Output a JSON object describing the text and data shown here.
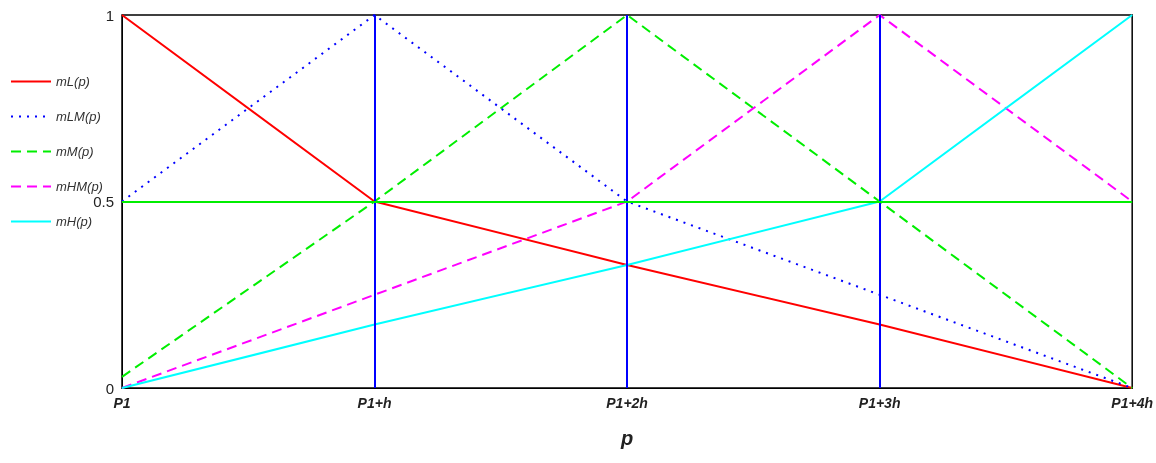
{
  "chart_data": {
    "type": "line",
    "xlabel": "p",
    "categories": [
      "P1",
      "P1+h",
      "P1+2h",
      "P1+3h",
      "P1+4h"
    ],
    "ylim": [
      0,
      1
    ],
    "yticks": [
      0,
      0.5,
      1
    ],
    "grid": false,
    "legend": "left",
    "marker": "none",
    "series": [
      {
        "name": "mL(p)",
        "color": "#ff0000",
        "line_style": "solid",
        "values": [
          1,
          0.5,
          0.33,
          0.17,
          0
        ]
      },
      {
        "name": "mLM(p)",
        "color": "#0000ff",
        "line_style": "dotted",
        "values": [
          0.5,
          1,
          0.5,
          0.25,
          0
        ]
      },
      {
        "name": "mM(p)",
        "color": "#00ee00",
        "line_style": "dashed",
        "values": [
          0.03,
          0.5,
          1,
          0.5,
          0
        ]
      },
      {
        "name": "mHM(p)",
        "color": "#ff00ff",
        "line_style": "dashed",
        "values": [
          0,
          0.25,
          0.5,
          1,
          0.5
        ]
      },
      {
        "name": "mH(p)",
        "color": "#00ffff",
        "line_style": "solid",
        "values": [
          0,
          0.17,
          0.33,
          0.5,
          1
        ]
      }
    ],
    "ref_lines": [
      {
        "axis": "y",
        "value": 0.5,
        "color": "#00ee00"
      },
      {
        "axis": "x",
        "value": "P1+h",
        "color": "#0000ff"
      },
      {
        "axis": "x",
        "value": "P1+2h",
        "color": "#0000ff"
      },
      {
        "axis": "x",
        "value": "P1+3h",
        "color": "#0000ff"
      }
    ]
  }
}
